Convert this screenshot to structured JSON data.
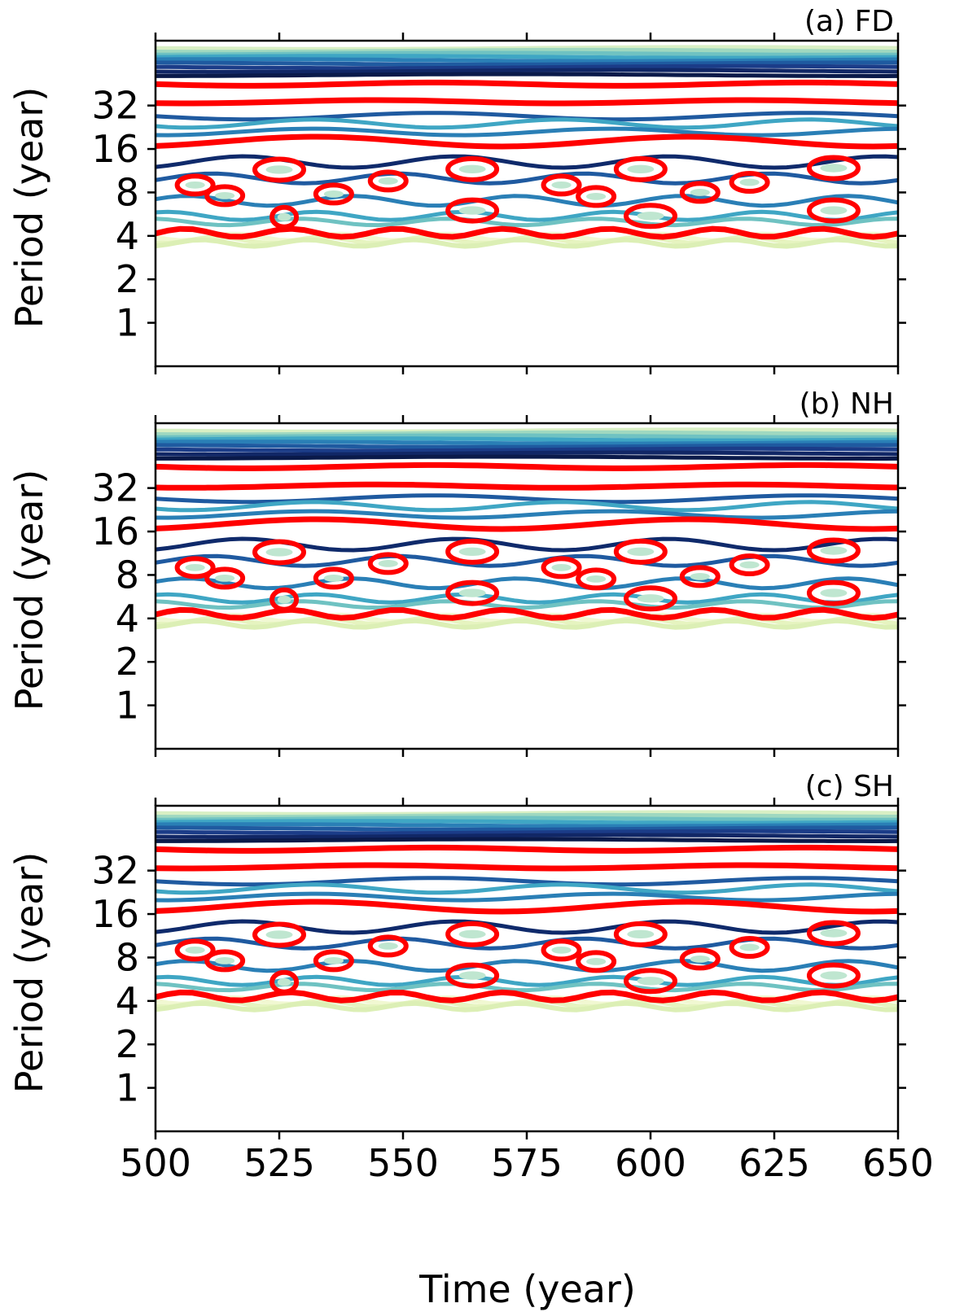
{
  "chart_data": [
    {
      "type": "contour",
      "title": "(a) FD",
      "ylabel": "Period (year)",
      "xlabel": "",
      "x_ticks": [
        500,
        525,
        550,
        575,
        600,
        625,
        650
      ],
      "y_ticks": [
        1,
        2,
        4,
        8,
        16,
        32
      ],
      "xlim": [
        500,
        650
      ],
      "ylim": [
        0.5,
        90
      ],
      "y_scale": "log2",
      "significance_contour_color": "#ff0000",
      "features": [
        {
          "kind": "band",
          "period": 45
        },
        {
          "kind": "band",
          "period": 34
        },
        {
          "kind": "band",
          "period": 18
        },
        {
          "kind": "band",
          "period": 4.2
        },
        {
          "kind": "island",
          "x": 508,
          "period": 9
        },
        {
          "kind": "island",
          "x": 514,
          "period": 7.6
        },
        {
          "kind": "island",
          "x": 525,
          "period": 11.5
        },
        {
          "kind": "island",
          "x": 536,
          "period": 7.8
        },
        {
          "kind": "island",
          "x": 547,
          "period": 9.6
        },
        {
          "kind": "island",
          "x": 526,
          "period": 5.4
        },
        {
          "kind": "island",
          "x": 564,
          "period": 11.6
        },
        {
          "kind": "island",
          "x": 564,
          "period": 6
        },
        {
          "kind": "island",
          "x": 582,
          "period": 9
        },
        {
          "kind": "island",
          "x": 589,
          "period": 7.5
        },
        {
          "kind": "island",
          "x": 598,
          "period": 11.6
        },
        {
          "kind": "island",
          "x": 600,
          "period": 5.5
        },
        {
          "kind": "island",
          "x": 610,
          "period": 8
        },
        {
          "kind": "island",
          "x": 620,
          "period": 9.4
        },
        {
          "kind": "island",
          "x": 637,
          "period": 11.8
        },
        {
          "kind": "island",
          "x": 637,
          "period": 6
        }
      ]
    },
    {
      "type": "contour",
      "title": "(b) NH",
      "ylabel": "Period (year)",
      "xlabel": "",
      "x_ticks": [
        500,
        525,
        550,
        575,
        600,
        625,
        650
      ],
      "y_ticks": [
        1,
        2,
        4,
        8,
        16,
        32
      ],
      "xlim": [
        500,
        650
      ],
      "ylim": [
        0.5,
        90
      ],
      "y_scale": "log2",
      "significance_contour_color": "#ff0000",
      "features": [
        {
          "kind": "band",
          "period": 45
        },
        {
          "kind": "band",
          "period": 33
        },
        {
          "kind": "band",
          "period": 18
        },
        {
          "kind": "band",
          "period": 4.3
        },
        {
          "kind": "island",
          "x": 508,
          "period": 9
        },
        {
          "kind": "island",
          "x": 514,
          "period": 7.6
        },
        {
          "kind": "island",
          "x": 525,
          "period": 11.5
        },
        {
          "kind": "island",
          "x": 536,
          "period": 7.6
        },
        {
          "kind": "island",
          "x": 547,
          "period": 9.6
        },
        {
          "kind": "island",
          "x": 526,
          "period": 5.4
        },
        {
          "kind": "island",
          "x": 564,
          "period": 11.6
        },
        {
          "kind": "island",
          "x": 564,
          "period": 6
        },
        {
          "kind": "island",
          "x": 582,
          "period": 9
        },
        {
          "kind": "island",
          "x": 589,
          "period": 7.5
        },
        {
          "kind": "island",
          "x": 598,
          "period": 11.6
        },
        {
          "kind": "island",
          "x": 600,
          "period": 5.5
        },
        {
          "kind": "island",
          "x": 610,
          "period": 7.8
        },
        {
          "kind": "island",
          "x": 620,
          "period": 9.4
        },
        {
          "kind": "island",
          "x": 637,
          "period": 11.8
        },
        {
          "kind": "island",
          "x": 637,
          "period": 6
        }
      ]
    },
    {
      "type": "contour",
      "title": "(c) SH",
      "ylabel": "Period (year)",
      "xlabel": "Time (year)",
      "x_ticks": [
        500,
        525,
        550,
        575,
        600,
        625,
        650
      ],
      "y_ticks": [
        1,
        2,
        4,
        8,
        16,
        32
      ],
      "xlim": [
        500,
        650
      ],
      "ylim": [
        0.5,
        90
      ],
      "y_scale": "log2",
      "significance_contour_color": "#ff0000",
      "features": [
        {
          "kind": "band",
          "period": 45
        },
        {
          "kind": "band",
          "period": 34
        },
        {
          "kind": "band",
          "period": 18
        },
        {
          "kind": "band",
          "period": 4.3
        },
        {
          "kind": "island",
          "x": 508,
          "period": 9
        },
        {
          "kind": "island",
          "x": 514,
          "period": 7.6
        },
        {
          "kind": "island",
          "x": 525,
          "period": 11.5
        },
        {
          "kind": "island",
          "x": 536,
          "period": 7.6
        },
        {
          "kind": "island",
          "x": 547,
          "period": 9.6
        },
        {
          "kind": "island",
          "x": 526,
          "period": 5.4
        },
        {
          "kind": "island",
          "x": 564,
          "period": 11.6
        },
        {
          "kind": "island",
          "x": 564,
          "period": 6
        },
        {
          "kind": "island",
          "x": 582,
          "period": 9
        },
        {
          "kind": "island",
          "x": 589,
          "period": 7.5
        },
        {
          "kind": "island",
          "x": 598,
          "period": 11.6
        },
        {
          "kind": "island",
          "x": 600,
          "period": 5.5
        },
        {
          "kind": "island",
          "x": 610,
          "period": 7.8
        },
        {
          "kind": "island",
          "x": 620,
          "period": 9.4
        },
        {
          "kind": "island",
          "x": 637,
          "period": 11.8
        },
        {
          "kind": "island",
          "x": 637,
          "period": 6
        }
      ]
    }
  ]
}
